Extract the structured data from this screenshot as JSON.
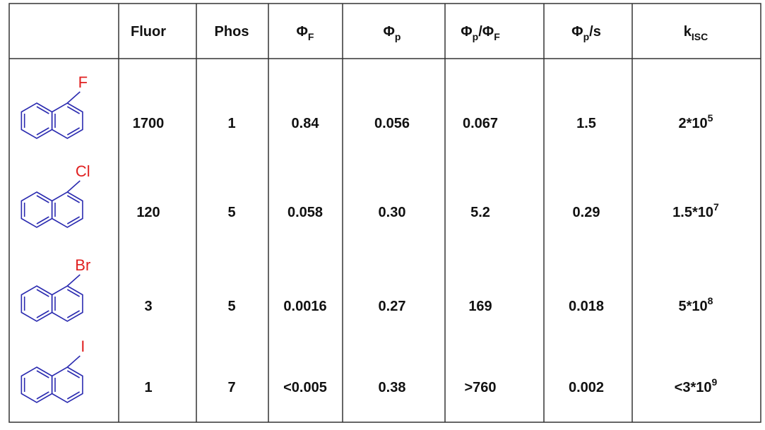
{
  "table": {
    "headers": [
      [
        {
          "text": "Fluor"
        }
      ],
      [
        {
          "text": "Phos"
        }
      ],
      [
        {
          "text": "Φ"
        },
        {
          "sub": "F"
        }
      ],
      [
        {
          "text": "Φ"
        },
        {
          "sub": "p"
        }
      ],
      [
        {
          "text": "Φ"
        },
        {
          "sub": "p"
        },
        {
          "text": "/Φ"
        },
        {
          "sub": "F"
        }
      ],
      [
        {
          "text": "Φ"
        },
        {
          "sub": "p"
        },
        {
          "text": "/s"
        }
      ],
      [
        {
          "text": "k"
        },
        {
          "sub": "ISC"
        }
      ]
    ],
    "rows": [
      {
        "substituent": "F",
        "cells": [
          [
            {
              "text": "1700"
            }
          ],
          [
            {
              "text": "1"
            }
          ],
          [
            {
              "text": "0.84"
            }
          ],
          [
            {
              "text": "0.056"
            }
          ],
          [
            {
              "text": "0.067"
            }
          ],
          [
            {
              "text": "1.5"
            }
          ],
          [
            {
              "text": "2*10"
            },
            {
              "sup": "5"
            }
          ]
        ]
      },
      {
        "substituent": "Cl",
        "cells": [
          [
            {
              "text": "120"
            }
          ],
          [
            {
              "text": "5"
            }
          ],
          [
            {
              "text": "0.058"
            }
          ],
          [
            {
              "text": "0.30"
            }
          ],
          [
            {
              "text": "5.2"
            }
          ],
          [
            {
              "text": "0.29"
            }
          ],
          [
            {
              "text": "1.5*10"
            },
            {
              "sup": "7"
            }
          ]
        ]
      },
      {
        "substituent": "Br",
        "cells": [
          [
            {
              "text": "3"
            }
          ],
          [
            {
              "text": "5"
            }
          ],
          [
            {
              "text": "0.0016"
            }
          ],
          [
            {
              "text": "0.27"
            }
          ],
          [
            {
              "text": "169"
            }
          ],
          [
            {
              "text": "0.018"
            }
          ],
          [
            {
              "text": "5*10"
            },
            {
              "sup": "8"
            }
          ]
        ]
      },
      {
        "substituent": "I",
        "cells": [
          [
            {
              "text": "1"
            }
          ],
          [
            {
              "text": "7"
            }
          ],
          [
            {
              "text": "<0.005"
            }
          ],
          [
            {
              "text": "0.38"
            }
          ],
          [
            {
              "text": ">760"
            }
          ],
          [
            {
              "text": "0.002"
            }
          ],
          [
            {
              "text": "<3*10"
            },
            {
              "sup": "9"
            }
          ]
        ]
      }
    ]
  }
}
